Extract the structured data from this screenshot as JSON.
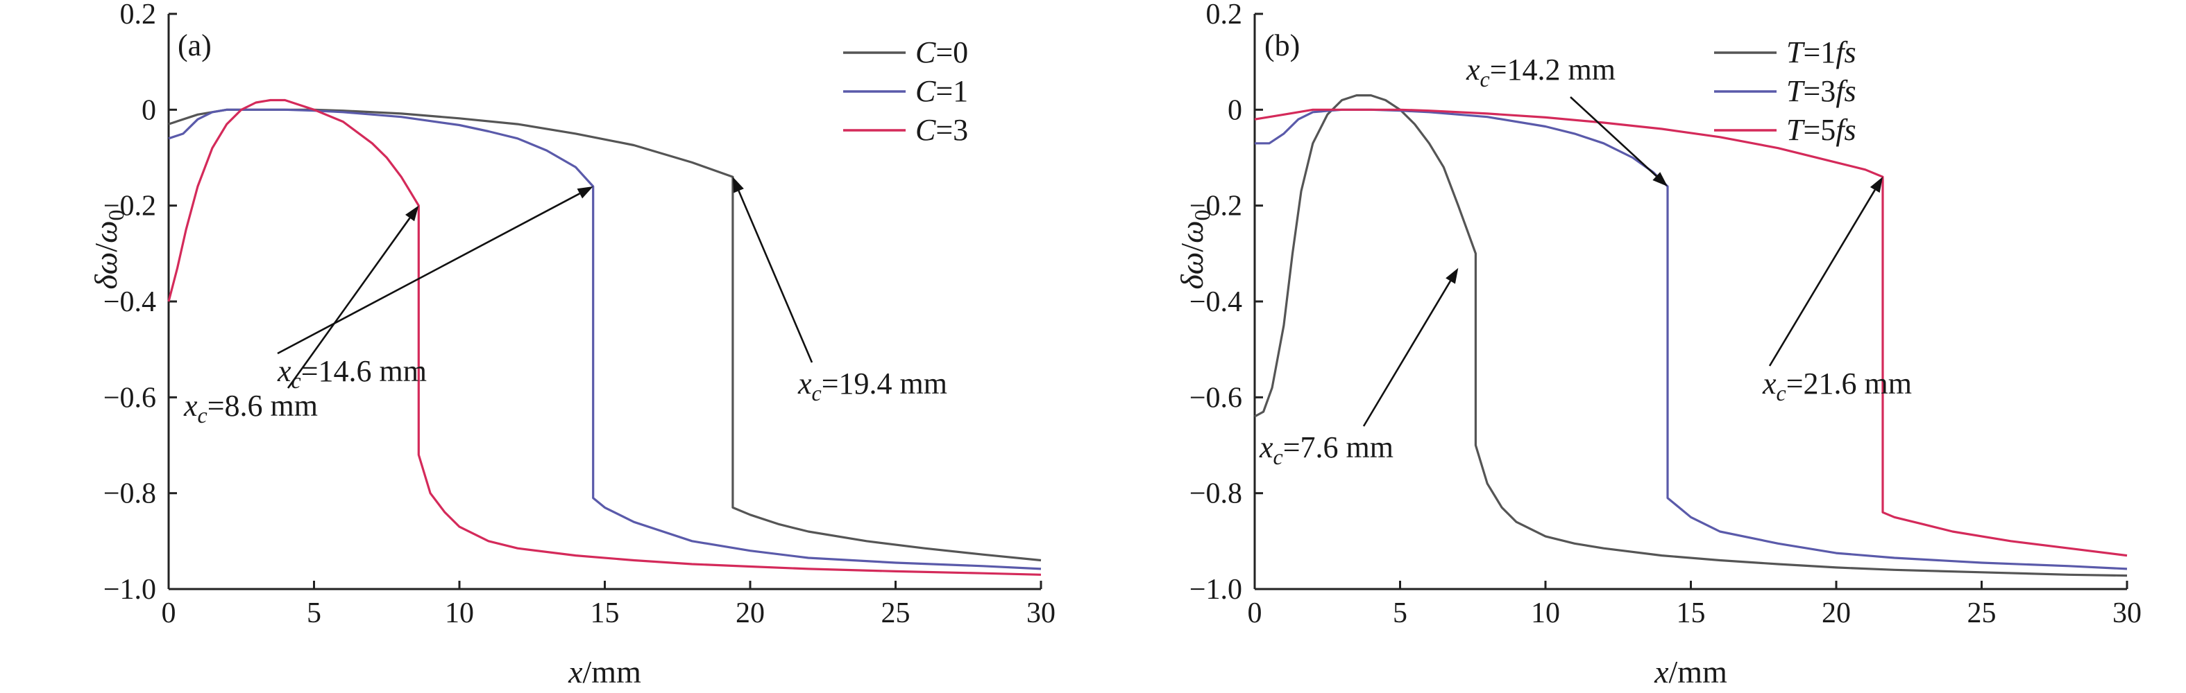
{
  "chart_data": [
    {
      "type": "line",
      "panel_label": "(a)",
      "xlabel": "x/mm",
      "ylabel": "δω/ω0",
      "xlim": [
        0,
        30
      ],
      "ylim": [
        -1.0,
        0.2
      ],
      "x_ticks": [
        0,
        5,
        10,
        15,
        20,
        25,
        30
      ],
      "y_ticks": [
        0.2,
        0,
        -0.2,
        -0.4,
        -0.6,
        -0.8,
        -1.0
      ],
      "x_tick_labels": [
        "0",
        "5",
        "10",
        "15",
        "20",
        "25",
        "30"
      ],
      "y_tick_labels": [
        "0.2",
        "0",
        "−0.2",
        "−0.4",
        "−0.6",
        "−0.8",
        "−1.0"
      ],
      "legend_position": "top-right",
      "series": [
        {
          "name": "C=0",
          "color": "#555555",
          "x": [
            0,
            1,
            2,
            3,
            4,
            5,
            6,
            8,
            10,
            12,
            14,
            16,
            18,
            19.4,
            19.4,
            20,
            21,
            22,
            24,
            26,
            28,
            30
          ],
          "y": [
            -0.03,
            -0.01,
            0.0,
            0.0,
            0.0,
            0.0,
            -0.002,
            -0.008,
            -0.018,
            -0.03,
            -0.05,
            -0.074,
            -0.11,
            -0.14,
            -0.83,
            -0.845,
            -0.865,
            -0.88,
            -0.9,
            -0.915,
            -0.928,
            -0.94
          ]
        },
        {
          "name": "C=1",
          "color": "#5a5aaa",
          "x": [
            0,
            0.5,
            1,
            1.5,
            2,
            3,
            4,
            5,
            6,
            8,
            10,
            11,
            12,
            13,
            14,
            14.6,
            14.6,
            15,
            16,
            18,
            20,
            22,
            25,
            28,
            30
          ],
          "y": [
            -0.06,
            -0.05,
            -0.02,
            -0.005,
            0.0,
            0.0,
            0.0,
            -0.002,
            -0.005,
            -0.015,
            -0.032,
            -0.045,
            -0.06,
            -0.085,
            -0.12,
            -0.16,
            -0.81,
            -0.83,
            -0.86,
            -0.9,
            -0.92,
            -0.935,
            -0.945,
            -0.952,
            -0.958
          ]
        },
        {
          "name": "C=3",
          "color": "#d42a5a",
          "x": [
            0,
            0.3,
            0.6,
            1,
            1.5,
            2,
            2.5,
            3,
            3.5,
            4,
            4.5,
            5,
            6,
            7,
            7.5,
            8,
            8.3,
            8.6,
            8.6,
            9,
            9.5,
            10,
            11,
            12,
            14,
            16,
            18,
            20,
            22,
            25,
            28,
            30
          ],
          "y": [
            -0.4,
            -0.33,
            -0.25,
            -0.16,
            -0.08,
            -0.03,
            0.0,
            0.015,
            0.02,
            0.02,
            0.01,
            0.0,
            -0.025,
            -0.07,
            -0.1,
            -0.14,
            -0.17,
            -0.2,
            -0.72,
            -0.8,
            -0.84,
            -0.87,
            -0.9,
            -0.915,
            -0.93,
            -0.94,
            -0.948,
            -0.953,
            -0.958,
            -0.963,
            -0.967,
            -0.97
          ]
        }
      ],
      "annotations": [
        {
          "text": "x_c=8.6 mm",
          "prefix": "x",
          "sub": "c",
          "rest": "=8.6 mm",
          "point_x": 8.6,
          "point_y": -0.2
        },
        {
          "text": "x_c=14.6 mm",
          "prefix": "x",
          "sub": "c",
          "rest": "=14.6 mm",
          "point_x": 14.6,
          "point_y": -0.16
        },
        {
          "text": "x_c=19.4 mm",
          "prefix": "x",
          "sub": "c",
          "rest": "=19.4 mm",
          "point_x": 19.4,
          "point_y": -0.14
        }
      ]
    },
    {
      "type": "line",
      "panel_label": "(b)",
      "xlabel": "x/mm",
      "ylabel": "δω/ω0",
      "xlim": [
        0,
        30
      ],
      "ylim": [
        -1.0,
        0.2
      ],
      "x_ticks": [
        0,
        5,
        10,
        15,
        20,
        25,
        30
      ],
      "y_ticks": [
        0.2,
        0,
        -0.2,
        -0.4,
        -0.6,
        -0.8,
        -1.0
      ],
      "x_tick_labels": [
        "0",
        "5",
        "10",
        "15",
        "20",
        "25",
        "30"
      ],
      "y_tick_labels": [
        "0.2",
        "0",
        "−0.2",
        "−0.4",
        "−0.6",
        "−0.8",
        "−1.0"
      ],
      "legend_position": "top-right",
      "series": [
        {
          "name": "T=1fs",
          "color": "#555555",
          "x": [
            0,
            0.3,
            0.6,
            1,
            1.3,
            1.6,
            2,
            2.5,
            3,
            3.5,
            4,
            4.5,
            5,
            5.5,
            6,
            6.5,
            7,
            7.3,
            7.6,
            7.6,
            8,
            8.5,
            9,
            10,
            11,
            12,
            14,
            16,
            18,
            20,
            22,
            25,
            28,
            30
          ],
          "y": [
            -0.64,
            -0.63,
            -0.58,
            -0.45,
            -0.3,
            -0.17,
            -0.07,
            -0.01,
            0.02,
            0.03,
            0.03,
            0.02,
            0.0,
            -0.03,
            -0.07,
            -0.12,
            -0.2,
            -0.25,
            -0.3,
            -0.7,
            -0.78,
            -0.83,
            -0.86,
            -0.89,
            -0.905,
            -0.915,
            -0.93,
            -0.94,
            -0.948,
            -0.955,
            -0.96,
            -0.965,
            -0.97,
            -0.972
          ]
        },
        {
          "name": "T=3fs",
          "color": "#5a5aaa",
          "x": [
            0,
            0.5,
            1,
            1.5,
            2,
            3,
            4,
            5,
            6,
            8,
            10,
            11,
            12,
            13,
            13.7,
            14.2,
            14.2,
            14.6,
            15,
            16,
            18,
            20,
            22,
            25,
            28,
            30
          ],
          "y": [
            -0.07,
            -0.07,
            -0.05,
            -0.02,
            -0.005,
            0.0,
            0.0,
            -0.002,
            -0.005,
            -0.015,
            -0.035,
            -0.05,
            -0.07,
            -0.1,
            -0.13,
            -0.16,
            -0.81,
            -0.83,
            -0.85,
            -0.88,
            -0.905,
            -0.925,
            -0.935,
            -0.945,
            -0.952,
            -0.958
          ]
        },
        {
          "name": "T=5fs",
          "color": "#d42a5a",
          "x": [
            0,
            1,
            2,
            3,
            4,
            5,
            6,
            8,
            10,
            12,
            14,
            16,
            18,
            20,
            21,
            21.6,
            21.6,
            22,
            23,
            24,
            26,
            28,
            30
          ],
          "y": [
            -0.02,
            -0.01,
            0.0,
            0.0,
            0.0,
            0.0,
            -0.002,
            -0.008,
            -0.016,
            -0.027,
            -0.04,
            -0.057,
            -0.08,
            -0.11,
            -0.125,
            -0.14,
            -0.84,
            -0.85,
            -0.865,
            -0.88,
            -0.9,
            -0.915,
            -0.93
          ]
        }
      ],
      "annotations": [
        {
          "text": "x_c=7.6 mm",
          "prefix": "x",
          "sub": "c",
          "rest": "=7.6 mm",
          "point_x": 7.0,
          "point_y": -0.33
        },
        {
          "text": "x_c=14.2 mm",
          "prefix": "x",
          "sub": "c",
          "rest": "=14.2 mm",
          "point_x": 14.2,
          "point_y": -0.16
        },
        {
          "text": "x_c=21.6 mm",
          "prefix": "x",
          "sub": "c",
          "rest": "=21.6 mm",
          "point_x": 21.6,
          "point_y": -0.14
        }
      ]
    }
  ]
}
